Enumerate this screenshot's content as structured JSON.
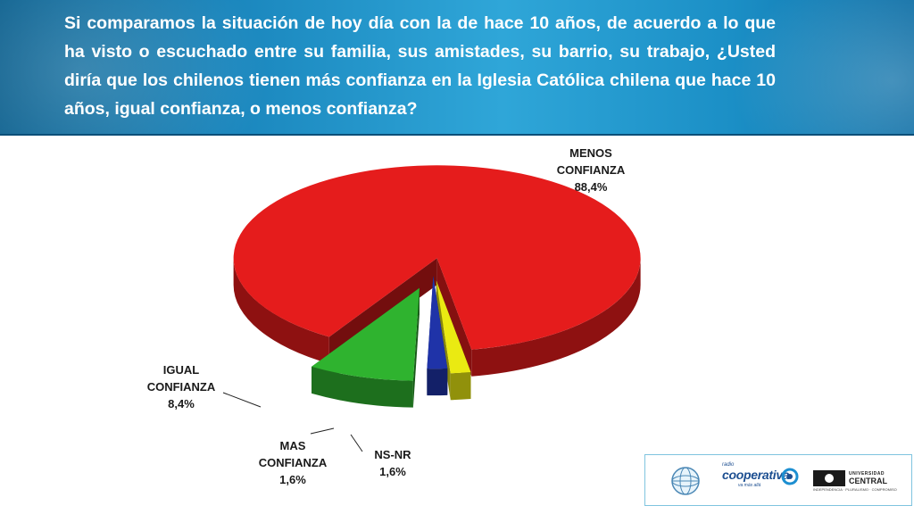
{
  "header": {
    "question": "Si comparamos la situación de hoy día con la de hace 10 años, de acuerdo a lo que ha visto o escuchado entre su familia, sus amistades, su barrio, su trabajo, ¿Usted diría que los chilenos tienen más confianza en la Iglesia Católica chilena que hace 10 años, igual confianza, o menos confianza?"
  },
  "chart_data": {
    "type": "pie",
    "title": "",
    "exploded": true,
    "style": "3d",
    "slices": [
      {
        "name": "MENOS CONFIANZA",
        "value": 88.4,
        "label": "88,4%",
        "color": "#e51c1c",
        "label_lines": [
          "MENOS",
          "CONFIANZA",
          "88,4%"
        ]
      },
      {
        "name": "NS-NR",
        "value": 1.6,
        "label": "1,6%",
        "color": "#eaea12",
        "label_lines": [
          "NS-NR",
          "1,6%"
        ]
      },
      {
        "name": "MAS CONFIANZA",
        "value": 1.6,
        "label": "1,6%",
        "color": "#1f33a8",
        "label_lines": [
          "MAS",
          "CONFIANZA",
          "1,6%"
        ]
      },
      {
        "name": "IGUAL CONFIANZA",
        "value": 8.4,
        "label": "8,4%",
        "color": "#2fb32f",
        "label_lines": [
          "IGUAL",
          "CONFIANZA",
          "8,4%"
        ]
      }
    ]
  },
  "footer_logos": {
    "radio": {
      "small": "radio",
      "name": "cooperativa",
      "tagline": "va más allá"
    },
    "university": {
      "line1": "UNIVERSIDAD",
      "line2": "CENTRAL",
      "motto": "INDEPENDENCIA · PLURALISMO · COMPROMISO"
    }
  }
}
